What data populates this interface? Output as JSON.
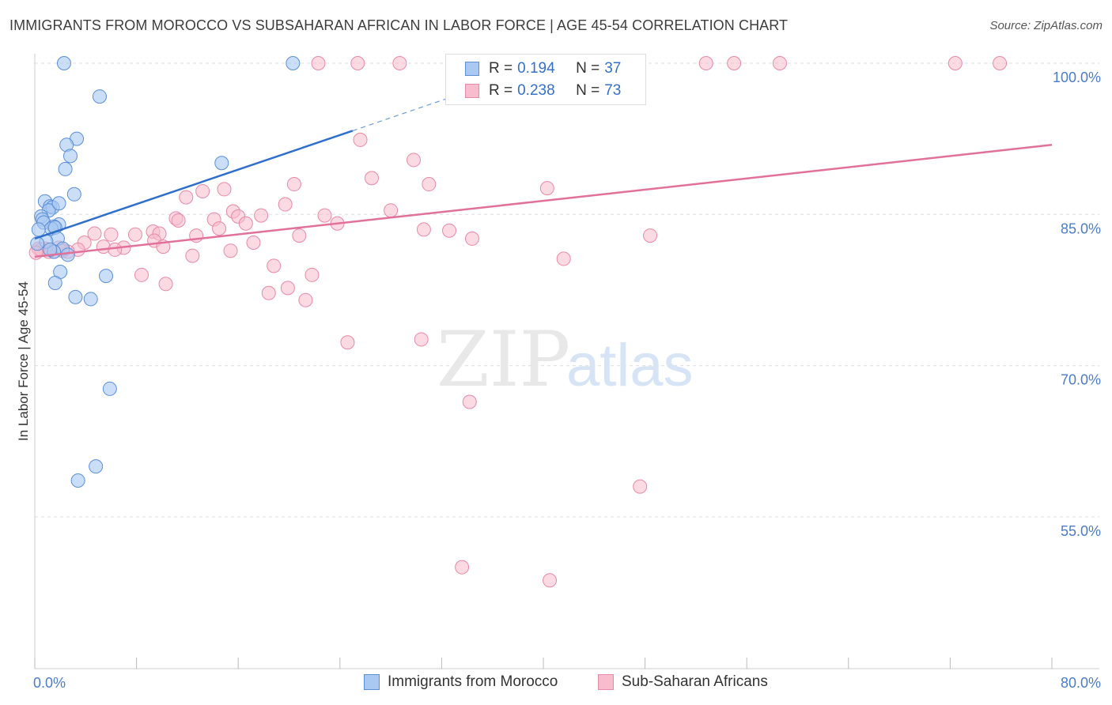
{
  "title": "IMMIGRANTS FROM MOROCCO VS SUBSAHARAN AFRICAN IN LABOR FORCE | AGE 45-54 CORRELATION CHART",
  "source": "Source: ZipAtlas.com",
  "watermark": {
    "zip": "ZIP",
    "atlas": "atlas"
  },
  "legend": {
    "series1": {
      "r_label": "R = ",
      "r_value": "0.194",
      "n_label": "N = ",
      "n_value": "37"
    },
    "series2": {
      "r_label": "R = ",
      "r_value": "0.238",
      "n_label": "N = ",
      "n_value": "73"
    }
  },
  "chart_data": {
    "type": "scatter",
    "title": "IMMIGRANTS FROM MOROCCO VS SUBSAHARAN AFRICAN IN LABOR FORCE | AGE 45-54 CORRELATION CHART",
    "xlabel": "",
    "ylabel": "In Labor Force | Age 45-54",
    "xlim": [
      0,
      80
    ],
    "ylim": [
      40,
      101
    ],
    "x_tick_labels": [
      "0.0%",
      "80.0%"
    ],
    "y_ticks": [
      55,
      70,
      85,
      100
    ],
    "y_tick_labels": [
      "55.0%",
      "70.0%",
      "85.0%",
      "100.0%"
    ],
    "colors": {
      "morocco_fill": "#a9c8f2",
      "morocco_stroke": "#5b8fd8",
      "morocco_line": "#2f6fcc",
      "ssa_fill": "#f7bccd",
      "ssa_stroke": "#e889a7",
      "ssa_line": "#e2719a",
      "grid": "#dddddd",
      "tick_text": "#4a7cc9"
    },
    "series": [
      {
        "name": "Immigrants from Morocco",
        "points": [
          [
            2.3,
            100
          ],
          [
            20.3,
            100
          ],
          [
            5.1,
            96.7
          ],
          [
            3.3,
            92.5
          ],
          [
            2.5,
            91.9
          ],
          [
            2.8,
            90.8
          ],
          [
            14.7,
            90.1
          ],
          [
            2.4,
            89.5
          ],
          [
            3.1,
            87.0
          ],
          [
            0.8,
            86.3
          ],
          [
            1.2,
            85.8
          ],
          [
            1.4,
            85.7
          ],
          [
            1.1,
            85.4
          ],
          [
            1.9,
            86.1
          ],
          [
            0.5,
            84.8
          ],
          [
            0.6,
            84.5
          ],
          [
            0.7,
            84.2
          ],
          [
            1.9,
            84.0
          ],
          [
            1.5,
            83.8
          ],
          [
            1.3,
            83.6
          ],
          [
            0.3,
            83.5
          ],
          [
            1.6,
            83.7
          ],
          [
            1.8,
            82.6
          ],
          [
            0.9,
            82.3
          ],
          [
            2.2,
            81.6
          ],
          [
            1.5,
            81.3
          ],
          [
            2.6,
            81.0
          ],
          [
            1.2,
            81.5
          ],
          [
            2.0,
            79.3
          ],
          [
            1.6,
            78.2
          ],
          [
            5.6,
            78.9
          ],
          [
            3.2,
            76.8
          ],
          [
            4.4,
            76.6
          ],
          [
            5.9,
            67.7
          ],
          [
            4.8,
            60.0
          ],
          [
            3.4,
            58.6
          ],
          [
            0.2,
            82.1
          ]
        ]
      },
      {
        "name": "Sub-Saharan Africans",
        "points": [
          [
            22.3,
            100
          ],
          [
            25.4,
            100
          ],
          [
            28.7,
            100
          ],
          [
            52.8,
            100
          ],
          [
            55.0,
            100
          ],
          [
            58.6,
            100
          ],
          [
            72.4,
            100
          ],
          [
            75.9,
            100
          ],
          [
            25.6,
            92.4
          ],
          [
            29.8,
            90.4
          ],
          [
            26.5,
            88.6
          ],
          [
            20.4,
            88.0
          ],
          [
            31.0,
            88.0
          ],
          [
            40.3,
            87.6
          ],
          [
            13.2,
            87.3
          ],
          [
            14.9,
            87.5
          ],
          [
            11.9,
            86.7
          ],
          [
            19.7,
            86.0
          ],
          [
            15.6,
            85.3
          ],
          [
            28.0,
            85.4
          ],
          [
            22.8,
            84.9
          ],
          [
            11.1,
            84.6
          ],
          [
            16.0,
            84.8
          ],
          [
            17.8,
            84.9
          ],
          [
            14.1,
            84.5
          ],
          [
            11.3,
            84.4
          ],
          [
            16.6,
            84.1
          ],
          [
            23.8,
            84.1
          ],
          [
            14.5,
            83.6
          ],
          [
            9.3,
            83.3
          ],
          [
            30.6,
            83.5
          ],
          [
            32.6,
            83.4
          ],
          [
            7.9,
            83.0
          ],
          [
            6.0,
            83.0
          ],
          [
            4.7,
            83.1
          ],
          [
            9.8,
            83.1
          ],
          [
            12.7,
            82.9
          ],
          [
            20.8,
            82.9
          ],
          [
            34.4,
            82.6
          ],
          [
            48.4,
            82.9
          ],
          [
            17.2,
            82.2
          ],
          [
            3.9,
            82.2
          ],
          [
            9.4,
            82.4
          ],
          [
            5.4,
            81.8
          ],
          [
            7.0,
            81.7
          ],
          [
            10.1,
            81.8
          ],
          [
            6.3,
            81.5
          ],
          [
            15.4,
            81.4
          ],
          [
            3.4,
            81.5
          ],
          [
            2.6,
            81.3
          ],
          [
            1.5,
            81.3
          ],
          [
            1.1,
            81.3
          ],
          [
            0.8,
            81.6
          ],
          [
            12.4,
            80.9
          ],
          [
            41.6,
            80.6
          ],
          [
            18.8,
            79.9
          ],
          [
            8.4,
            79.0
          ],
          [
            21.8,
            79.0
          ],
          [
            10.3,
            78.1
          ],
          [
            18.4,
            77.2
          ],
          [
            19.9,
            77.7
          ],
          [
            21.3,
            76.5
          ],
          [
            24.6,
            72.3
          ],
          [
            30.4,
            72.6
          ],
          [
            34.2,
            66.4
          ],
          [
            47.6,
            58.0
          ],
          [
            33.6,
            50.0
          ],
          [
            40.5,
            48.7
          ],
          [
            0.3,
            81.6
          ],
          [
            0.5,
            81.5
          ],
          [
            1.9,
            81.7
          ],
          [
            2.2,
            81.4
          ],
          [
            0.1,
            81.2
          ]
        ]
      }
    ],
    "trend_lines": [
      {
        "name": "Immigrants from Morocco",
        "solid": [
          [
            0,
            82.6
          ],
          [
            25,
            93.3
          ]
        ],
        "dashed": [
          [
            25,
            93.3
          ],
          [
            38,
            98.9
          ]
        ]
      },
      {
        "name": "Sub-Saharan Africans",
        "solid": [
          [
            0,
            80.8
          ],
          [
            80,
            91.9
          ]
        ]
      }
    ]
  },
  "bottom_legend": [
    "Immigrants from Morocco",
    "Sub-Saharan Africans"
  ]
}
